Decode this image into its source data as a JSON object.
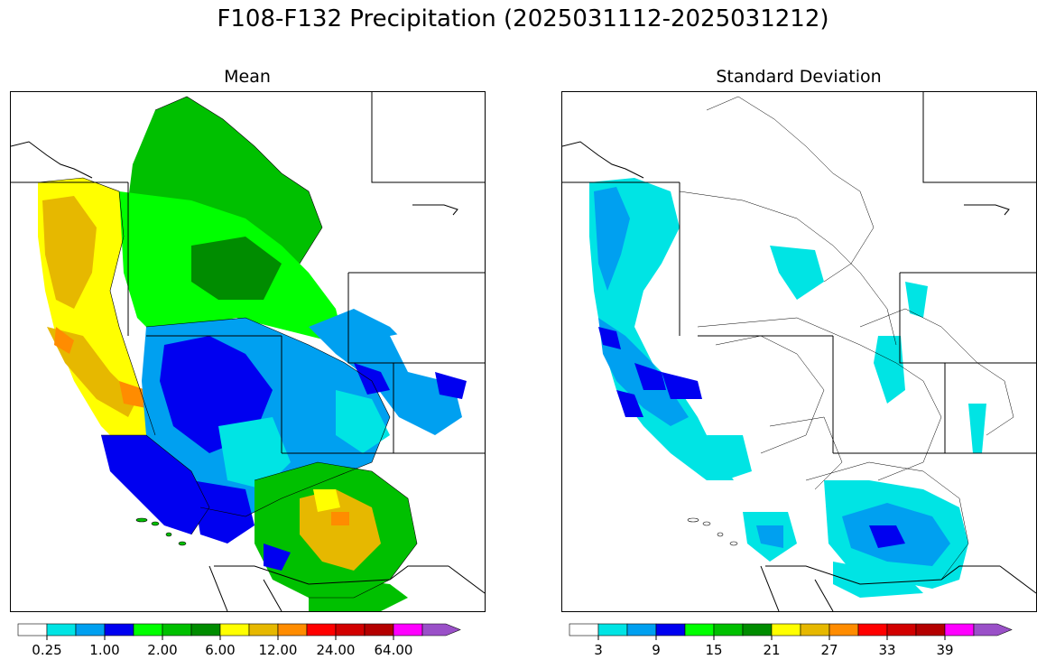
{
  "figure": {
    "title": "F108-F132 Precipitation (2025031112-2025031212)"
  },
  "colors": {
    "levels": [
      "#ffffff",
      "#00e4e4",
      "#00a0f0",
      "#0000f0",
      "#00ff00",
      "#00c000",
      "#008c00",
      "#ffff00",
      "#e6b800",
      "#ff8c00",
      "#ff0000",
      "#d20000",
      "#b40000",
      "#ff00ff",
      "#9a50c8"
    ]
  },
  "chart_data": [
    {
      "type": "heatmap",
      "title": "Mean",
      "colorbar": {
        "tick_labels": [
          "0.25",
          "1.00",
          "2.00",
          "6.00",
          "12.00",
          "24.00",
          "64.00"
        ],
        "tick_bin_index": [
          1,
          3,
          5,
          7,
          9,
          11,
          13
        ],
        "n_bins": 15,
        "extend": "max"
      }
    },
    {
      "type": "heatmap",
      "title": "Standard Deviation",
      "colorbar": {
        "tick_labels": [
          "3",
          "9",
          "15",
          "21",
          "27",
          "33",
          "39"
        ],
        "tick_bin_index": [
          1,
          3,
          5,
          7,
          9,
          11,
          13
        ],
        "n_bins": 15,
        "extend": "max"
      }
    }
  ]
}
